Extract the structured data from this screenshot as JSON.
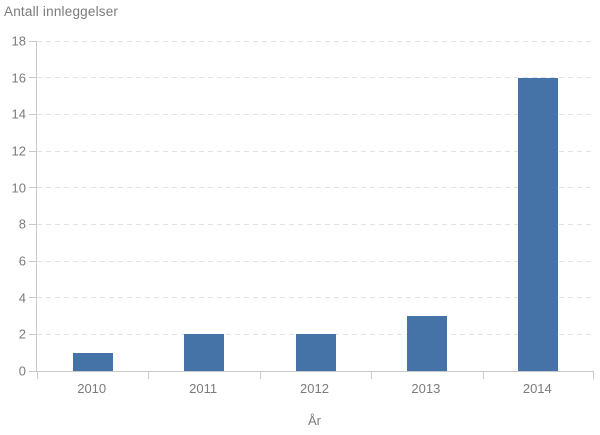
{
  "chart": {
    "title": "Antall innleggelser",
    "xlabel": "År"
  },
  "chart_data": {
    "type": "bar",
    "title": "Antall innleggelser",
    "categories": [
      "2010",
      "2011",
      "2012",
      "2013",
      "2014"
    ],
    "values": [
      1,
      2,
      2,
      3,
      16
    ],
    "xlabel": "År",
    "ylabel": "Antall innleggelser",
    "ylim": [
      0,
      18
    ],
    "yticks": [
      0,
      2,
      4,
      6,
      8,
      10,
      12,
      14,
      16,
      18
    ],
    "grid": "horizontal-dashed",
    "legend": "none",
    "bar_color": "#4572a7",
    "text_color": "#7b7b7b",
    "grid_color": "#e2e2e2",
    "axis_color": "#c9c9c9",
    "background_color": "#ffffff"
  }
}
